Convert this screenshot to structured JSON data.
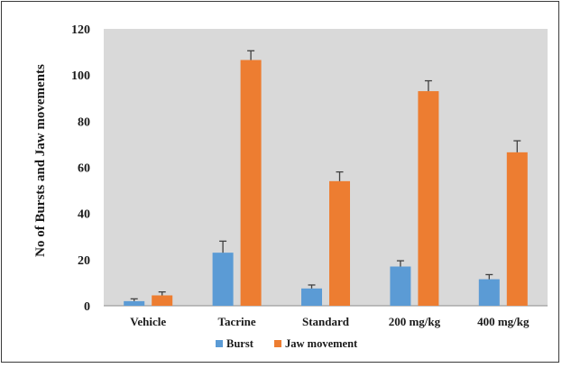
{
  "chart_data": {
    "type": "bar",
    "title": "",
    "xlabel": "",
    "ylabel": "No of Bursts and Jaw movements",
    "categories": [
      "Vehicle",
      "Tacrine",
      "Standard",
      "200 mg/kg",
      "400 mg/kg"
    ],
    "series": [
      {
        "name": "Burst",
        "values": [
          2,
          23,
          7.5,
          17,
          11.5
        ],
        "errors": [
          1,
          5,
          1.5,
          2.5,
          2
        ],
        "color": "#5b9bd5"
      },
      {
        "name": "Jaw movement",
        "values": [
          4.5,
          106.5,
          54,
          93,
          66.5
        ],
        "errors": [
          1.5,
          4,
          4,
          4.5,
          5
        ],
        "color": "#ed7d31"
      }
    ],
    "ylim": [
      0,
      120
    ],
    "yticks": [
      0,
      20,
      40,
      60,
      80,
      100,
      120
    ],
    "grid": false,
    "error_bars": true,
    "legend_position": "bottom",
    "plot_background": "#d9d9d9"
  }
}
